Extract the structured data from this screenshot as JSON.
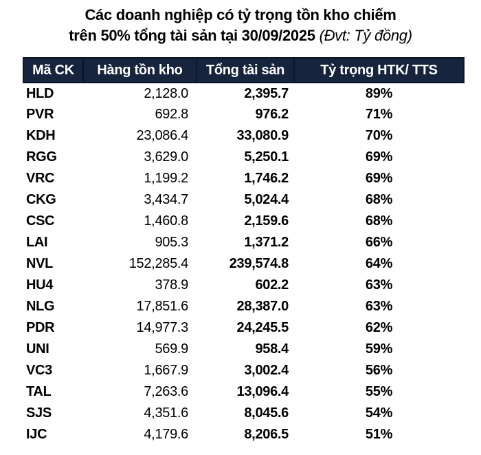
{
  "title": {
    "line1": "Các doanh nghiệp có tỷ trọng tồn kho chiếm",
    "line2_bold": "trên 50% tổng tài sản tại 30/09/2025",
    "unit_note": "(Đvt: Tỷ đồng)"
  },
  "colors": {
    "header_bg": "#16243E",
    "header_border": "#0C1624",
    "header_text": "#FFFFFF",
    "body_text": "#000000",
    "page_bg": "#FFFFFF"
  },
  "chart_data": {
    "type": "table",
    "title": "Các doanh nghiệp có tỷ trọng tồn kho chiếm trên 50% tổng tài sản tại 30/09/2025",
    "unit": "Đvt: Tỷ đồng",
    "columns": [
      "Mã CK",
      "Hàng tồn kho",
      "Tổng tài sản",
      "Tỷ trọng HTK/ TTS"
    ],
    "rows": [
      [
        "HLD",
        "2,128.0",
        "2,395.7",
        "89%"
      ],
      [
        "PVR",
        "692.8",
        "976.2",
        "71%"
      ],
      [
        "KDH",
        "23,086.4",
        "33,080.9",
        "70%"
      ],
      [
        "RGG",
        "3,629.0",
        "5,250.1",
        "69%"
      ],
      [
        "VRC",
        "1,199.2",
        "1,746.2",
        "69%"
      ],
      [
        "CKG",
        "3,434.7",
        "5,024.4",
        "68%"
      ],
      [
        "CSC",
        "1,460.8",
        "2,159.6",
        "68%"
      ],
      [
        "LAI",
        "905.3",
        "1,371.2",
        "66%"
      ],
      [
        "NVL",
        "152,285.4",
        "239,574.8",
        "64%"
      ],
      [
        "HU4",
        "378.9",
        "602.2",
        "63%"
      ],
      [
        "NLG",
        "17,851.6",
        "28,387.0",
        "63%"
      ],
      [
        "PDR",
        "14,977.3",
        "24,245.5",
        "62%"
      ],
      [
        "UNI",
        "569.9",
        "958.4",
        "59%"
      ],
      [
        "VC3",
        "1,667.9",
        "3,002.4",
        "56%"
      ],
      [
        "TAL",
        "7,263.6",
        "13,096.4",
        "55%"
      ],
      [
        "SJS",
        "4,351.6",
        "8,045.6",
        "54%"
      ],
      [
        "IJC",
        "4,179.6",
        "8,206.5",
        "51%"
      ]
    ]
  }
}
